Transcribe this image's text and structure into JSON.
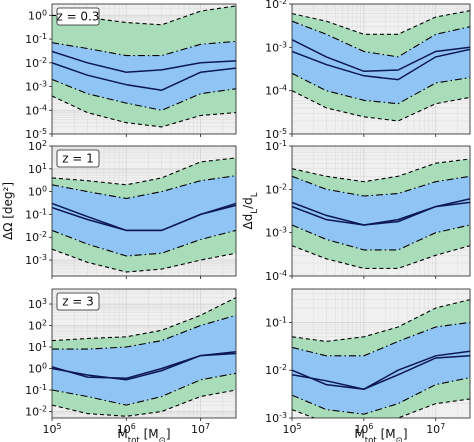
{
  "colors": {
    "outer_band": "#a9dcb9",
    "inner_band": "#90c4f4",
    "panel_bg": "#f0f0f0",
    "grid": "#d6d6d6",
    "median_line": "#0c1757",
    "dashed": "#000000"
  },
  "x_axis_label": "M_tot [M_⊙]",
  "x_tick_labels": [
    "10^5",
    "10^6",
    "10^7"
  ],
  "left_ylabel": "ΔΩ [deg²]",
  "right_ylabel": "Δd_L/d_L",
  "chart_data": [
    {
      "type": "area",
      "z_label": "z = 0.3",
      "xlim": [
        100000,
        30000000
      ],
      "ylim": [
        1e-05,
        3
      ],
      "yticks": [
        "10^0",
        "10^-1",
        "10^-2",
        "10^-3",
        "10^-4",
        "10^-5"
      ],
      "x": [
        100000,
        300000,
        1000000,
        3000000,
        10000000,
        30000000
      ],
      "series": [
        {
          "role": "outer_upper",
          "values": [
            1.0,
            0.8,
            0.5,
            0.4,
            1.5,
            2.5
          ]
        },
        {
          "role": "inner_upper",
          "values": [
            0.07,
            0.04,
            0.02,
            0.02,
            0.06,
            0.08
          ]
        },
        {
          "role": "median_1",
          "values": [
            0.03,
            0.01,
            0.004,
            0.005,
            0.01,
            0.012
          ]
        },
        {
          "role": "median_2",
          "values": [
            0.01,
            0.003,
            0.0012,
            0.0007,
            0.004,
            0.006
          ]
        },
        {
          "role": "inner_lower",
          "values": [
            0.002,
            0.0005,
            0.0002,
            0.0001,
            0.0005,
            0.0008
          ]
        },
        {
          "role": "outer_lower",
          "values": [
            0.0004,
            8e-05,
            3e-05,
            2e-05,
            6e-05,
            8e-05
          ]
        }
      ]
    },
    {
      "type": "area",
      "xlim": [
        100000,
        30000000
      ],
      "ylim": [
        1e-05,
        0.01
      ],
      "yticks": [
        "10^-2",
        "10^-3",
        "10^-4",
        "10^-5"
      ],
      "x": [
        100000,
        300000,
        1000000,
        3000000,
        10000000,
        30000000
      ],
      "series": [
        {
          "role": "outer_upper",
          "values": [
            0.006,
            0.004,
            0.002,
            0.002,
            0.005,
            0.007
          ]
        },
        {
          "role": "inner_upper",
          "values": [
            0.004,
            0.002,
            0.0008,
            0.0006,
            0.002,
            0.003
          ]
        },
        {
          "role": "median_1",
          "values": [
            0.0015,
            0.0006,
            0.00028,
            0.0003,
            0.0008,
            0.001
          ]
        },
        {
          "role": "median_2",
          "values": [
            0.0008,
            0.0004,
            0.00022,
            0.00018,
            0.0006,
            0.0009
          ]
        },
        {
          "role": "inner_lower",
          "values": [
            0.00025,
            0.0001,
            6e-05,
            5e-05,
            0.00015,
            0.0002
          ]
        },
        {
          "role": "outer_lower",
          "values": [
            0.0001,
            4e-05,
            2.5e-05,
            2e-05,
            5e-05,
            7e-05
          ]
        }
      ]
    },
    {
      "type": "area",
      "z_label": "z = 1",
      "xlim": [
        100000,
        30000000
      ],
      "ylim": [
        0.0002,
        100
      ],
      "yticks": [
        "10^2",
        "10^1",
        "10^0",
        "10^-1",
        "10^-2",
        "10^-3"
      ],
      "x": [
        100000,
        300000,
        1000000,
        3000000,
        10000000,
        30000000
      ],
      "series": [
        {
          "role": "outer_upper",
          "values": [
            4,
            3,
            2,
            4,
            20,
            30
          ]
        },
        {
          "role": "inner_upper",
          "values": [
            2,
            1,
            0.5,
            1,
            3,
            5
          ]
        },
        {
          "role": "median_1",
          "values": [
            0.3,
            0.08,
            0.02,
            0.02,
            0.1,
            0.3
          ]
        },
        {
          "role": "median_2",
          "values": [
            0.2,
            0.06,
            0.02,
            0.02,
            0.1,
            0.25
          ]
        },
        {
          "role": "inner_lower",
          "values": [
            0.02,
            0.005,
            0.0015,
            0.002,
            0.008,
            0.02
          ]
        },
        {
          "role": "outer_lower",
          "values": [
            0.003,
            0.0008,
            0.0003,
            0.0004,
            0.001,
            0.002
          ]
        }
      ]
    },
    {
      "type": "area",
      "xlim": [
        100000,
        30000000
      ],
      "ylim": [
        0.0001,
        0.1
      ],
      "yticks": [
        "10^-1",
        "10^-2",
        "10^-3",
        "10^-4"
      ],
      "x": [
        100000,
        300000,
        1000000,
        3000000,
        10000000,
        30000000
      ],
      "series": [
        {
          "role": "outer_upper",
          "values": [
            0.03,
            0.02,
            0.015,
            0.02,
            0.04,
            0.05
          ]
        },
        {
          "role": "inner_upper",
          "values": [
            0.02,
            0.01,
            0.007,
            0.008,
            0.015,
            0.02
          ]
        },
        {
          "role": "median_1",
          "values": [
            0.005,
            0.0025,
            0.0015,
            0.002,
            0.004,
            0.006
          ]
        },
        {
          "role": "median_2",
          "values": [
            0.004,
            0.002,
            0.0015,
            0.0018,
            0.004,
            0.005
          ]
        },
        {
          "role": "inner_lower",
          "values": [
            0.0015,
            0.0007,
            0.0004,
            0.0004,
            0.001,
            0.0015
          ]
        },
        {
          "role": "outer_lower",
          "values": [
            0.0005,
            0.00025,
            0.00015,
            0.00015,
            0.0003,
            0.0005
          ]
        }
      ]
    },
    {
      "type": "area",
      "z_label": "z = 3",
      "xlim": [
        100000,
        30000000
      ],
      "ylim": [
        0.005,
        5000
      ],
      "yticks": [
        "10^3",
        "10^2",
        "10^1",
        "10^0",
        "10^-1",
        "10^-2"
      ],
      "x": [
        100000,
        300000,
        1000000,
        3000000,
        10000000,
        30000000
      ],
      "series": [
        {
          "role": "outer_upper",
          "values": [
            20,
            25,
            30,
            60,
            300,
            2000
          ]
        },
        {
          "role": "inner_upper",
          "values": [
            8,
            8,
            10,
            20,
            100,
            300
          ]
        },
        {
          "role": "median_1",
          "values": [
            1.2,
            0.4,
            0.35,
            1.0,
            4,
            5
          ]
        },
        {
          "role": "median_2",
          "values": [
            1.0,
            0.5,
            0.3,
            0.8,
            4,
            6
          ]
        },
        {
          "role": "inner_lower",
          "values": [
            0.1,
            0.05,
            0.02,
            0.05,
            0.3,
            0.6
          ]
        },
        {
          "role": "outer_lower",
          "values": [
            0.02,
            0.008,
            0.006,
            0.01,
            0.05,
            0.1
          ]
        }
      ]
    },
    {
      "type": "area",
      "xlim": [
        100000,
        30000000
      ],
      "ylim": [
        0.001,
        0.5
      ],
      "yticks": [
        "10^-1",
        "10^-2",
        "10^-3"
      ],
      "x": [
        100000,
        300000,
        1000000,
        3000000,
        10000000,
        30000000
      ],
      "series": [
        {
          "role": "outer_upper",
          "values": [
            0.05,
            0.04,
            0.05,
            0.08,
            0.2,
            0.3
          ]
        },
        {
          "role": "inner_upper",
          "values": [
            0.03,
            0.02,
            0.02,
            0.04,
            0.08,
            0.1
          ]
        },
        {
          "role": "median_1",
          "values": [
            0.01,
            0.005,
            0.004,
            0.01,
            0.02,
            0.025
          ]
        },
        {
          "role": "median_2",
          "values": [
            0.008,
            0.006,
            0.004,
            0.008,
            0.018,
            0.02
          ]
        },
        {
          "role": "inner_lower",
          "values": [
            0.003,
            0.0015,
            0.0012,
            0.002,
            0.005,
            0.007
          ]
        },
        {
          "role": "outer_lower",
          "values": [
            0.0015,
            0.0008,
            0.0006,
            0.001,
            0.002,
            0.0025
          ]
        }
      ]
    }
  ]
}
